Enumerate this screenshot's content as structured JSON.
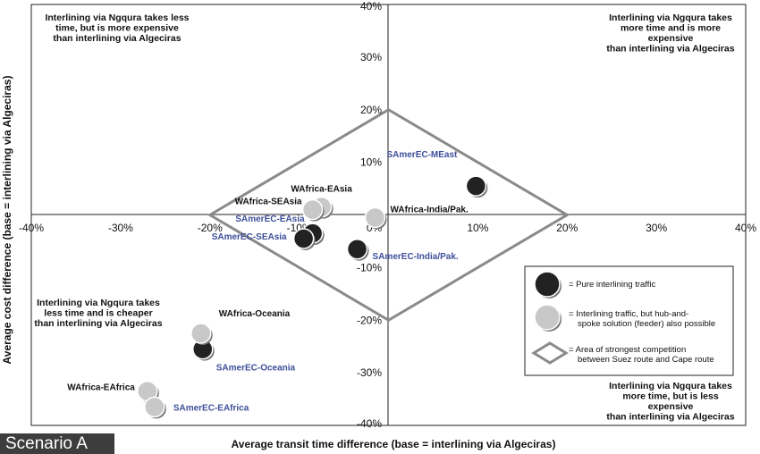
{
  "chart_data": {
    "type": "scatter",
    "title": "",
    "xlabel": "Average transit time difference (base = interlining via Algeciras)",
    "ylabel": "Average cost difference  (base = interlining via Algeciras)",
    "xlim": [
      -40,
      40
    ],
    "ylim": [
      -40,
      40
    ],
    "x_ticks": [
      "-40%",
      "-30%",
      "-20%",
      "-10%",
      "0%",
      "10%",
      "20%",
      "30%",
      "40%"
    ],
    "y_ticks": [
      "40%",
      "30%",
      "20%",
      "10%",
      "0%",
      "-10%",
      "-20%",
      "-30%",
      "-40%"
    ],
    "grid": false,
    "quadrant_notes": [
      {
        "lines": [
          "Interlining via Ngqura takes less",
          "time, but is more expensive",
          "than interlining via Algeciras"
        ]
      },
      {
        "lines": [
          "Interlining via  Ngqura takes",
          "more time and is more",
          "expensive",
          "than interlining via Algeciras"
        ]
      },
      {
        "lines": [
          "Interlining via Ngqura takes",
          "less time and is cheaper",
          "than interlining via Algeciras"
        ]
      },
      {
        "lines": [
          "Interlining via Ngqura takes",
          "more time, but is less",
          "expensive",
          "than interlining via Algeciras"
        ]
      }
    ],
    "diamond": {
      "x": [
        -20,
        0,
        20,
        0
      ],
      "y": [
        0,
        20,
        0,
        -20
      ]
    },
    "series": [
      {
        "name": "= Pure interlining traffic",
        "color": "#222222",
        "points": [
          {
            "label": "SAmerEC-MEast",
            "x": 9.8,
            "y": 5.5
          },
          {
            "label": "SAmerEC-EAsia",
            "x": -8.5,
            "y": -3.5
          },
          {
            "label": "SAmerEC-SEAsia",
            "x": -9.5,
            "y": -4.5
          },
          {
            "label": "SAmerEC-India/Pak.",
            "x": -3.5,
            "y": -6.5
          },
          {
            "label": "SAmerEC-Oceania",
            "x": -20.8,
            "y": -25.5
          }
        ]
      },
      {
        "name": "= Interlining traffic, but hub-and-spoke solution (feeder) also possible",
        "color": "#c8c8c8",
        "points": [
          {
            "label": "WAfrica-EAsia",
            "x": -7.5,
            "y": 1.5
          },
          {
            "label": "WAfrica-SEAsia",
            "x": -8.5,
            "y": 1.0
          },
          {
            "label": "WAfrica-India/Pak.",
            "x": -1.5,
            "y": -0.5
          },
          {
            "label": "WAfrica-Oceania",
            "x": -21.0,
            "y": -22.5
          },
          {
            "label": "WAfrica-EAfrica",
            "x": -27.0,
            "y": -33.5
          },
          {
            "label": "SAmerEC-EAfrica",
            "x": -26.2,
            "y": -36.5
          }
        ]
      }
    ],
    "legend": {
      "placement": "bottom-right",
      "items": [
        {
          "marker": "dark-circle",
          "lines": [
            "= Pure interlining traffic"
          ]
        },
        {
          "marker": "light-circle",
          "lines": [
            "= Interlining traffic, but hub-and-",
            "spoke solution (feeder) also possible"
          ]
        },
        {
          "marker": "diamond",
          "lines": [
            "= Area of strongest competition",
            "between Suez route and  Cape route"
          ]
        }
      ]
    },
    "label_colors": {
      "WAfrica": "#111111",
      "SAmerEC": "#3e4f9a"
    }
  },
  "scenario_label": "Scenario A"
}
